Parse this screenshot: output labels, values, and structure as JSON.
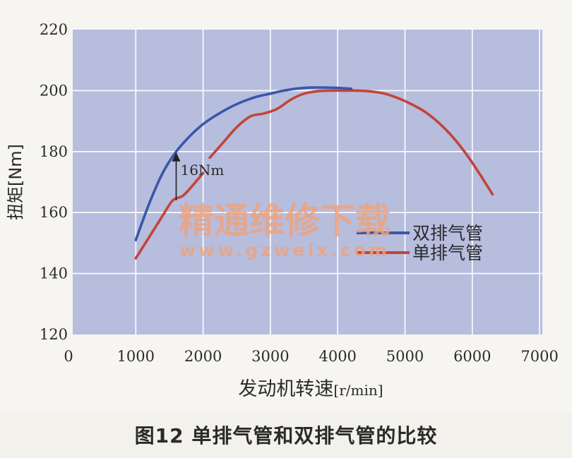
{
  "caption": "图12 单排气管和双排气管的比较",
  "watermark": {
    "line1": "精通维修下载",
    "line2": "www.gzweix.com"
  },
  "chart_data": {
    "type": "line",
    "xlabel_main": "发动机转速",
    "xlabel_unit": "[r/min]",
    "ylabel": "扭矩[Nm]",
    "xlim": [
      0,
      7000
    ],
    "ylim": [
      120,
      220
    ],
    "xticks": [
      0,
      1000,
      2000,
      3000,
      4000,
      5000,
      6000,
      7000
    ],
    "yticks": [
      120,
      140,
      160,
      180,
      200,
      220
    ],
    "grid": true,
    "legend_position": "right",
    "annotation": {
      "text": "16Nm",
      "x": 1600,
      "y_from": 164,
      "y_to": 180
    },
    "colors": {
      "plot_bg": "#b7bddd",
      "grid": "#ffffff",
      "dual": "#3b56a8",
      "single": "#c3443a"
    },
    "series": [
      {
        "name": "双排气管",
        "x": [
          1000,
          1200,
          1400,
          1600,
          1800,
          2000,
          2200,
          2400,
          2600,
          2800,
          3000,
          3200,
          3400,
          3600,
          3800,
          4000,
          4200
        ],
        "y": [
          151,
          163,
          173,
          180,
          185,
          189,
          192,
          194.5,
          196.5,
          198,
          199,
          200,
          200.7,
          201,
          201,
          200.9,
          200.6
        ]
      },
      {
        "name": "单排气管",
        "segments": [
          {
            "x": [
              1000,
              1200,
              1400,
              1550,
              1700,
              1850,
              2000
            ],
            "y": [
              145,
              152,
              159,
              164,
              165.5,
              169,
              173
            ]
          },
          {
            "x": [
              2100,
              2300,
              2500,
              2700,
              2900,
              3100,
              3300,
              3500,
              3700,
              3900,
              4100,
              4300,
              4500,
              4700,
              4900,
              5100,
              5300,
              5500,
              5700,
              5900,
              6100,
              6300
            ],
            "y": [
              178,
              183,
              188,
              191.5,
              192.5,
              194,
              197,
              199,
              199.8,
              200,
              200,
              200,
              199.7,
              199,
              197.5,
              195.5,
              193,
              189.5,
              185,
              179.5,
              173,
              166
            ]
          }
        ]
      }
    ]
  }
}
